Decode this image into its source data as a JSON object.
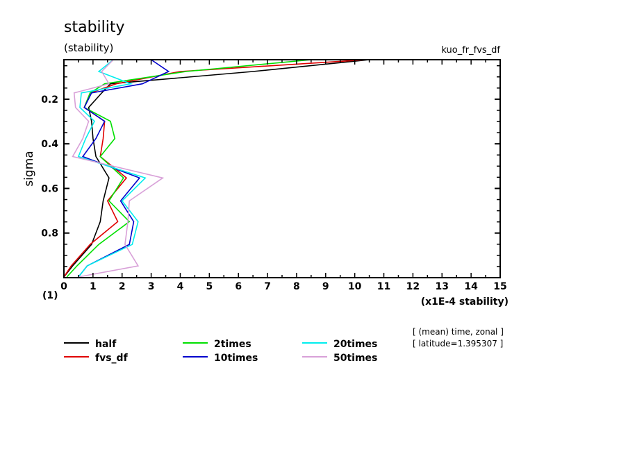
{
  "chart_data": {
    "type": "line",
    "title": "stability",
    "subtitle": "(stability)",
    "run_label": "kuo_fr_fvs_df",
    "xlabel": "(x1E-4 stability)",
    "ylabel": "sigma",
    "y_unit_label": "(1)",
    "xlim": [
      0,
      15
    ],
    "ylim": [
      1.0,
      0.023
    ],
    "y_inverted": true,
    "x_ticks": [
      "0",
      "1",
      "2",
      "3",
      "4",
      "5",
      "6",
      "7",
      "8",
      "9",
      "10",
      "11",
      "12",
      "13",
      "14",
      "15"
    ],
    "y_ticks": [
      "0.2",
      "0.4",
      "0.6",
      "0.8"
    ],
    "y_tick_values": [
      0.2,
      0.4,
      0.6,
      0.8
    ],
    "grid": false,
    "legend_placement": "bottom",
    "annotation_lines": [
      "[ (mean) time, zonal ]",
      "[ latitude=1.395307 ]"
    ],
    "sigma": [
      0.023,
      0.076,
      0.131,
      0.172,
      0.237,
      0.299,
      0.376,
      0.457,
      0.553,
      0.656,
      0.749,
      0.851,
      0.947,
      0.997
    ],
    "series": [
      {
        "name": "half",
        "color": "#000000",
        "values": [
          10.5,
          6.5,
          1.6,
          1.3,
          0.85,
          0.95,
          1.0,
          1.1,
          1.55,
          1.35,
          1.25,
          0.95,
          0.3,
          0.0
        ]
      },
      {
        "name": "fvs_df",
        "color": "#e00000",
        "values": [
          10.4,
          4.0,
          1.8,
          0.9,
          0.7,
          1.4,
          1.35,
          1.25,
          2.15,
          1.5,
          1.85,
          0.9,
          0.25,
          0.0
        ]
      },
      {
        "name": "2times",
        "color": "#00e000",
        "values": [
          8.5,
          4.2,
          1.4,
          0.9,
          0.7,
          1.6,
          1.75,
          1.25,
          2.05,
          1.55,
          2.25,
          1.2,
          0.45,
          0.1
        ]
      },
      {
        "name": "10times",
        "color": "#0000cc",
        "values": [
          3.0,
          3.6,
          2.7,
          0.95,
          0.7,
          1.4,
          1.1,
          0.65,
          2.6,
          1.95,
          2.4,
          2.25,
          0.8,
          0.5
        ]
      },
      {
        "name": "20times",
        "color": "#00eeee",
        "values": [
          1.7,
          1.2,
          2.3,
          0.6,
          0.55,
          1.05,
          0.75,
          0.5,
          2.8,
          2.0,
          2.55,
          2.35,
          0.8,
          0.5
        ]
      },
      {
        "name": "50times",
        "color": "#d8a0d8",
        "values": [
          1.7,
          1.3,
          1.55,
          0.35,
          0.4,
          0.85,
          0.65,
          0.3,
          3.4,
          2.25,
          2.2,
          2.1,
          2.55,
          0.5
        ]
      }
    ]
  }
}
